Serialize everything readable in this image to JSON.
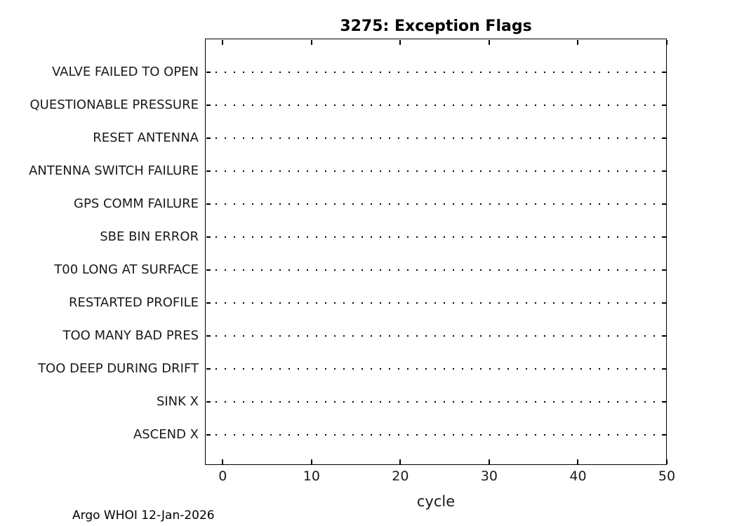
{
  "page": {
    "background": "#ffffff"
  },
  "footer": {
    "text": "Argo WHOI 12-Jan-2026"
  },
  "chart_data": {
    "type": "scatter",
    "title": "3275: Exception Flags",
    "xlabel": "cycle",
    "ylabel": "",
    "categories": [
      "VALVE FAILED TO OPEN",
      "QUESTIONABLE PRESSURE",
      "RESET ANTENNA",
      "ANTENNA SWITCH FAILURE",
      "GPS COMM FAILURE",
      "SBE BIN ERROR",
      "T00 LONG AT SURFACE",
      "RESTARTED PROFILE",
      "TOO MANY BAD PRES",
      "TOO DEEP DURING DRIFT",
      "SINK X",
      "ASCEND X"
    ],
    "points": [],
    "x_ticks": [
      0,
      10,
      20,
      30,
      40,
      50
    ],
    "xlim": [
      -2,
      50
    ],
    "grid": "dotted horizontal baseline per category, box on, ticks inward on all four sides",
    "legend": "none",
    "colors": {
      "axis_line": "#000000",
      "dot_line": "#000000",
      "text": "#1a1a1a",
      "background": "#ffffff"
    }
  }
}
